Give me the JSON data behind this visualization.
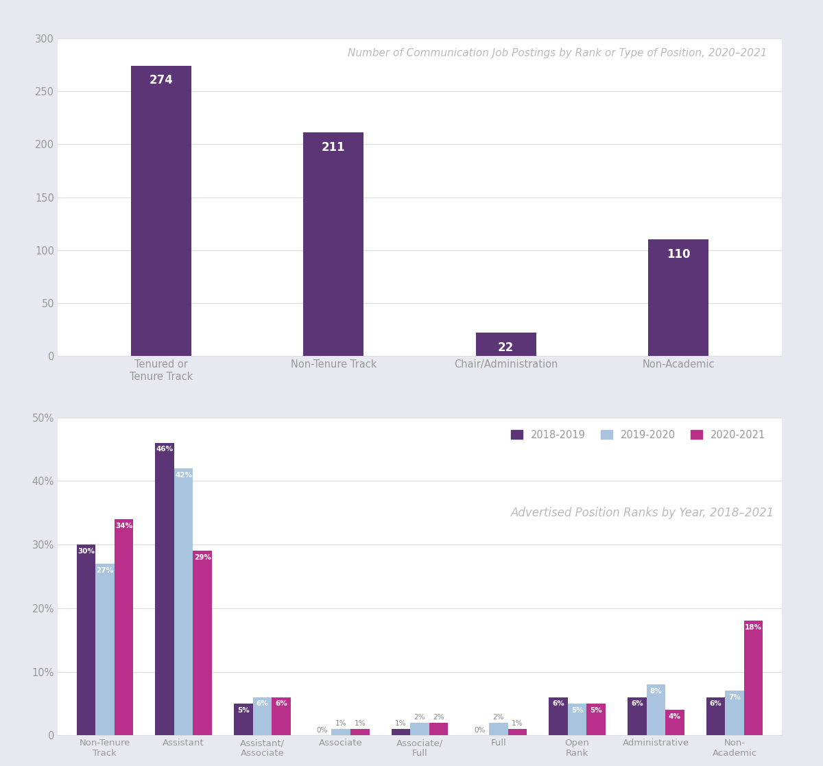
{
  "top_chart": {
    "title": "Number of Communication Job Postings by Rank or Type of Position, 2020–2021",
    "categories": [
      "Tenured or\nTenure Track",
      "Non-Tenure Track",
      "Chair/Administration",
      "Non-Academic"
    ],
    "values": [
      274,
      211,
      22,
      110
    ],
    "bar_color": "#5c3577",
    "ylim": [
      0,
      300
    ],
    "yticks": [
      0,
      50,
      100,
      150,
      200,
      250,
      300
    ],
    "outer_bg": "#f0f0f5",
    "plot_bg": "#ffffff"
  },
  "bottom_chart": {
    "title": "Advertised Position Ranks by Year, 2018–2021",
    "categories": [
      "Non-Tenure\nTrack",
      "Assistant",
      "Assistant/\nAssociate",
      "Associate",
      "Associate/\nFull",
      "Full",
      "Open\nRank",
      "Administrative",
      "Non-\nAcademic"
    ],
    "series": {
      "2018-2019": [
        30,
        46,
        5,
        0,
        1,
        0,
        6,
        6,
        6
      ],
      "2019-2020": [
        27,
        42,
        6,
        1,
        2,
        2,
        5,
        8,
        7
      ],
      "2020-2021": [
        34,
        29,
        6,
        1,
        2,
        1,
        5,
        4,
        18
      ]
    },
    "colors": {
      "2018-2019": "#5c3577",
      "2019-2020": "#a8c4de",
      "2020-2021": "#b8308a"
    },
    "ylim": [
      0,
      50
    ],
    "yticks": [
      0,
      10,
      20,
      30,
      40,
      50
    ],
    "ytick_labels": [
      "0",
      "10%",
      "20%",
      "30%",
      "40%",
      "50%"
    ],
    "outer_bg": "#eaeaf2",
    "plot_bg": "#ffffff",
    "legend_labels": [
      "2018-2019",
      "2019-2020",
      "2020-2021"
    ]
  }
}
